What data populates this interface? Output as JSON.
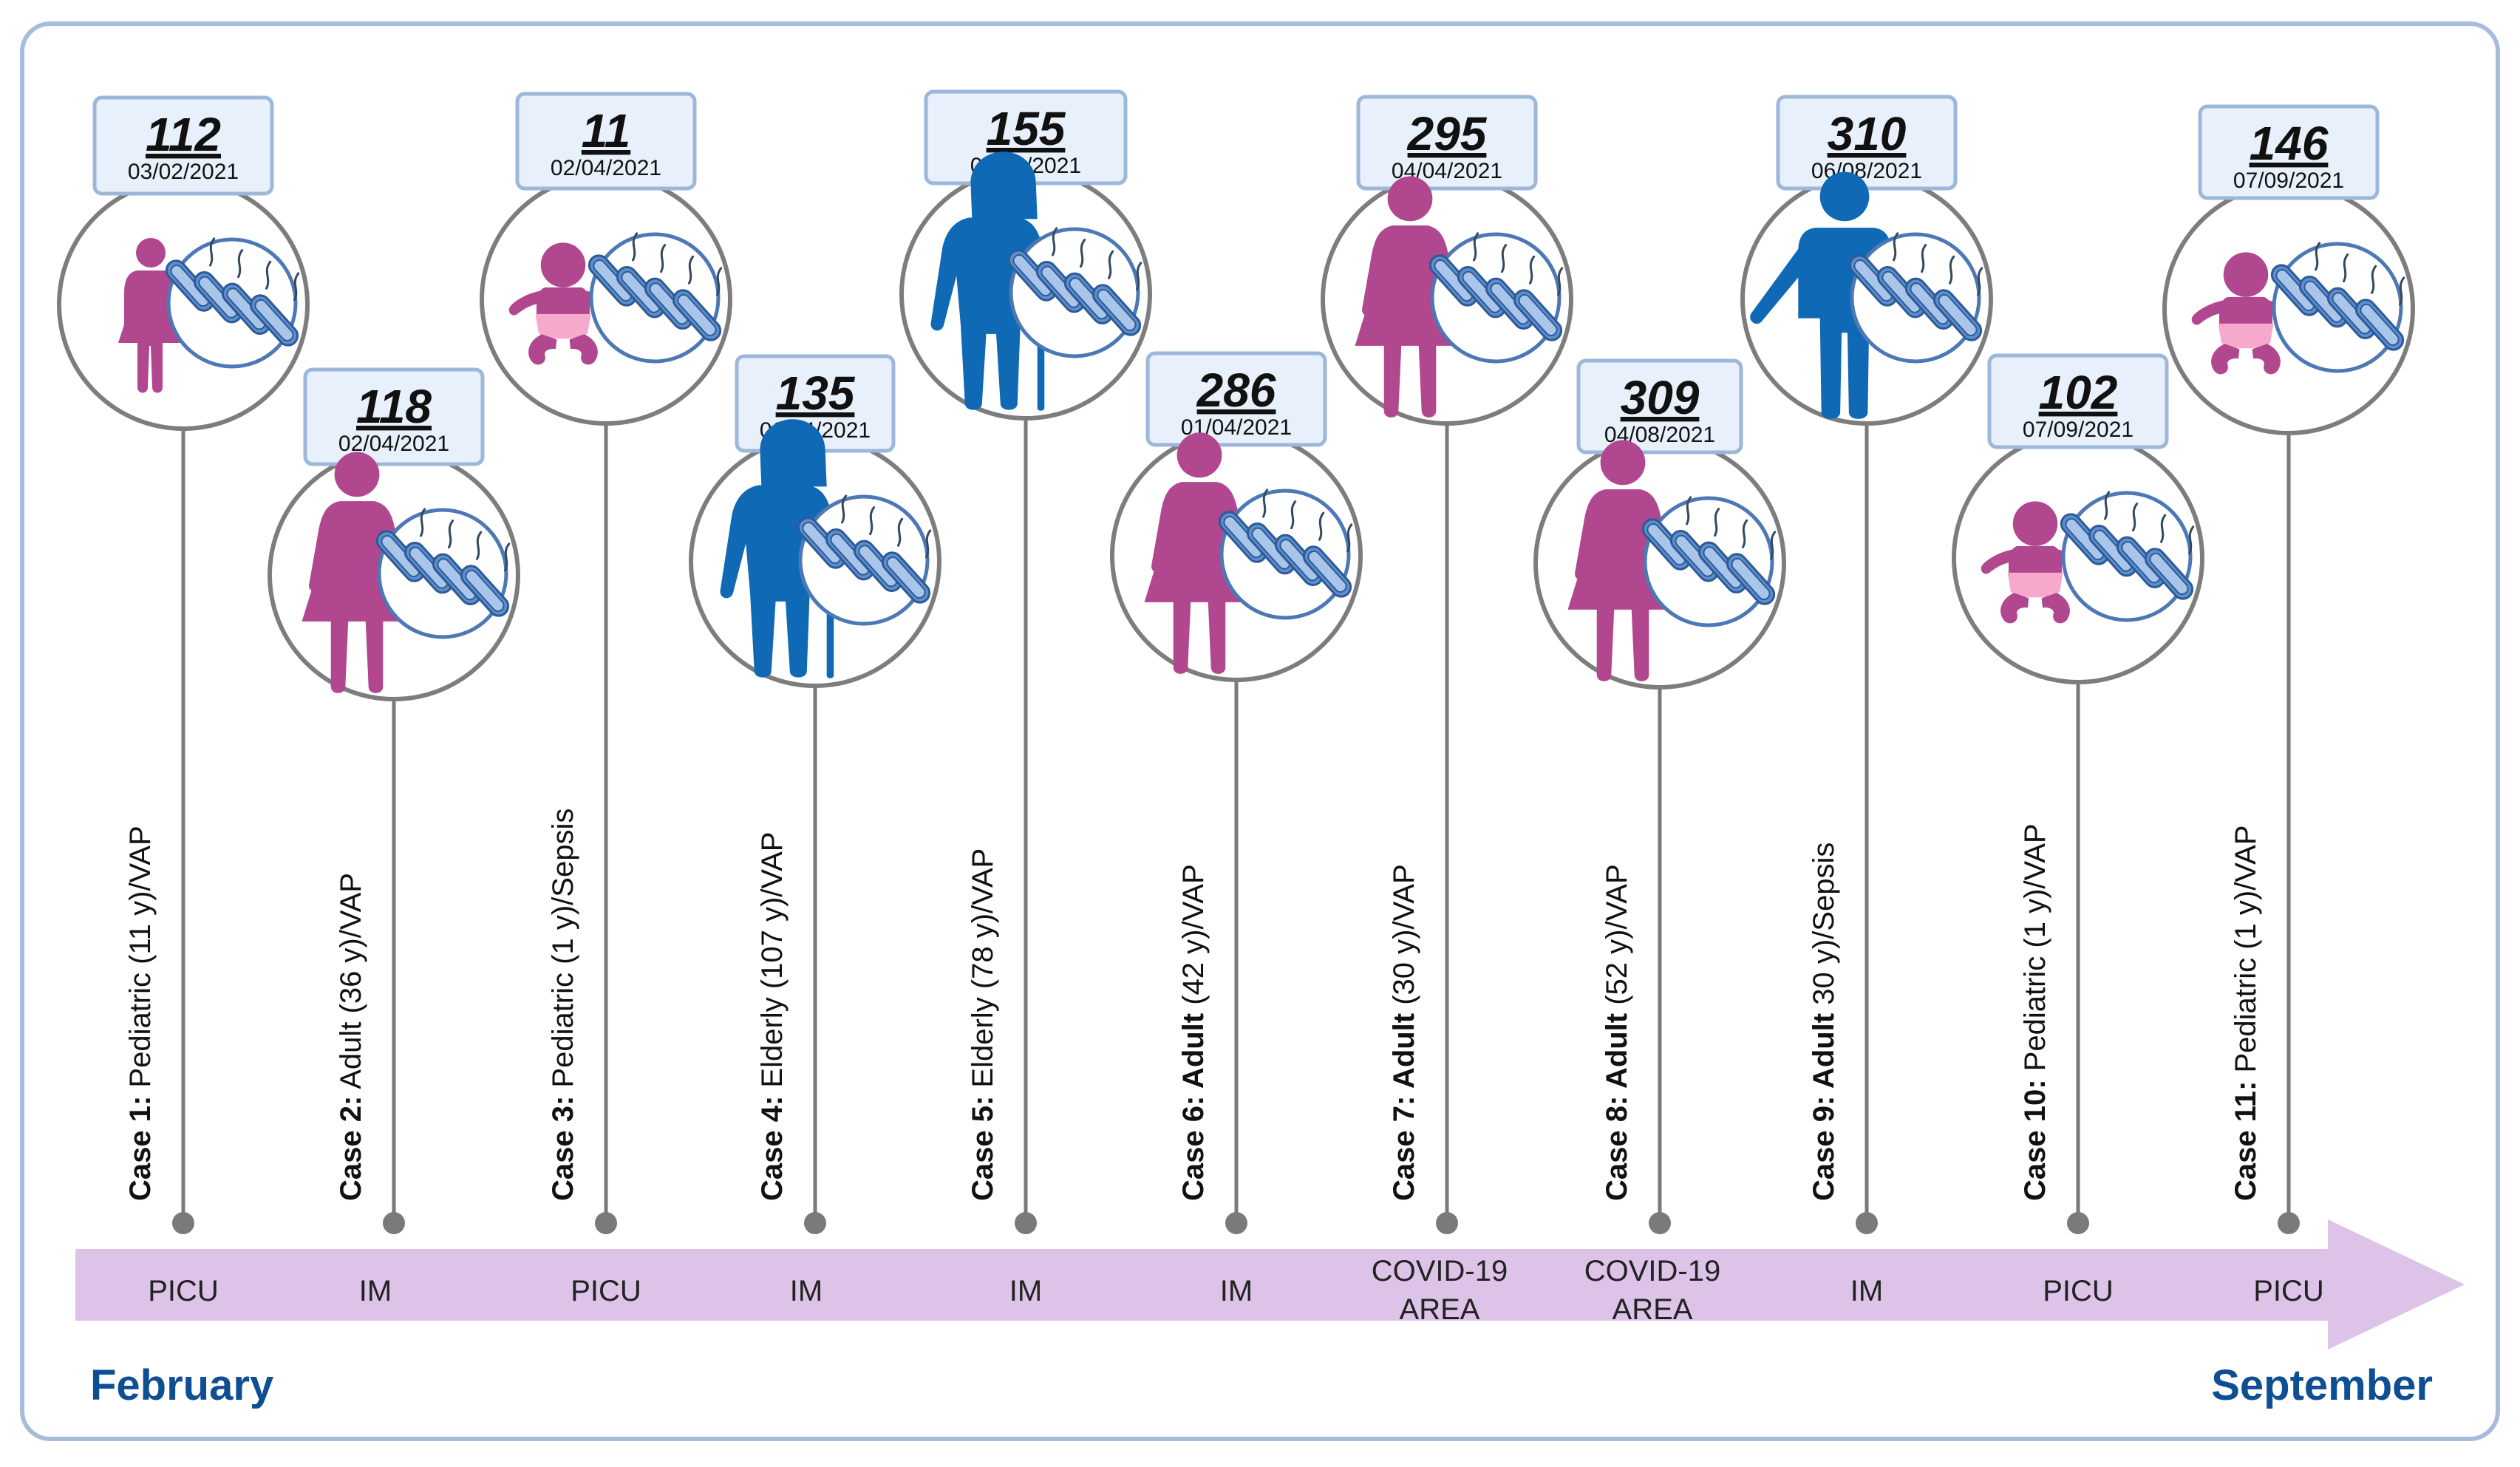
{
  "start_month": "February",
  "end_month": "September",
  "colors": {
    "female": "#b0478f",
    "male": "#0f69b4",
    "bacteria": "#4f82c4",
    "badge_fill": "#e8f1fb",
    "badge_stroke": "#9db7da",
    "arrow": "#dec3e8",
    "month": "#0e4f94",
    "frame": "#a7bcdc",
    "line": "#7a7a7a"
  },
  "cases": [
    {
      "id": "112",
      "date": "03/02/2021",
      "bold": "Case 1:",
      "rest": " Pediatric (11 y)/VAP",
      "ward": [
        "PICU"
      ],
      "figure": "girl-icon",
      "color": "female"
    },
    {
      "id": "118",
      "date": "02/04/2021",
      "bold": "Case 2:",
      "rest": " Adult (36 y)/VAP",
      "ward": [
        "IM"
      ],
      "figure": "woman-icon",
      "color": "female"
    },
    {
      "id": "11",
      "date": "02/04/2021",
      "bold": "Case 3:",
      "rest": " Pediatric (1 y)/Sepsis",
      "ward": [
        "PICU"
      ],
      "figure": "baby-icon",
      "color": "female"
    },
    {
      "id": "135",
      "date": "06/04/2021",
      "bold": "Case 4:",
      "rest": " Elderly (107 y)/VAP",
      "ward": [
        "IM"
      ],
      "figure": "elderly-man-icon",
      "color": "male"
    },
    {
      "id": "155",
      "date": "06/04/2021",
      "bold": "Case 5:",
      "rest": " Elderly (78 y)/VAP",
      "ward": [
        "IM"
      ],
      "figure": "elderly-man-icon",
      "color": "male"
    },
    {
      "id": "286",
      "date": "01/04/2021",
      "bold": "Case 6: Adult",
      "rest": " (42 y)/VAP",
      "ward": [
        "IM"
      ],
      "figure": "woman-icon",
      "color": "female"
    },
    {
      "id": "295",
      "date": "04/04/2021",
      "bold": "Case 7: Adult",
      "rest": " (30 y)/VAP",
      "ward": [
        "COVID-19",
        "AREA"
      ],
      "figure": "woman-icon",
      "color": "female"
    },
    {
      "id": "309",
      "date": "04/08/2021",
      "bold": "Case 8: Adult",
      "rest": " (52 y)/VAP",
      "ward": [
        "COVID-19",
        "AREA"
      ],
      "figure": "woman-icon",
      "color": "female"
    },
    {
      "id": "310",
      "date": "06/08/2021",
      "bold": "Case 9: Adult",
      "rest": " 30 y)/Sepsis",
      "ward": [
        "IM"
      ],
      "figure": "man-icon",
      "color": "male"
    },
    {
      "id": "102",
      "date": "07/09/2021",
      "bold": "Case 10:",
      "rest": " Pediatric (1 y)/VAP",
      "ward": [
        "PICU"
      ],
      "figure": "baby-icon",
      "color": "female"
    },
    {
      "id": "146",
      "date": "07/09/2021",
      "bold": "Case 11:",
      "rest": " Pediatric (1 y)/VAP",
      "ward": [
        "PICU"
      ],
      "figure": "baby-icon",
      "color": "female"
    }
  ]
}
